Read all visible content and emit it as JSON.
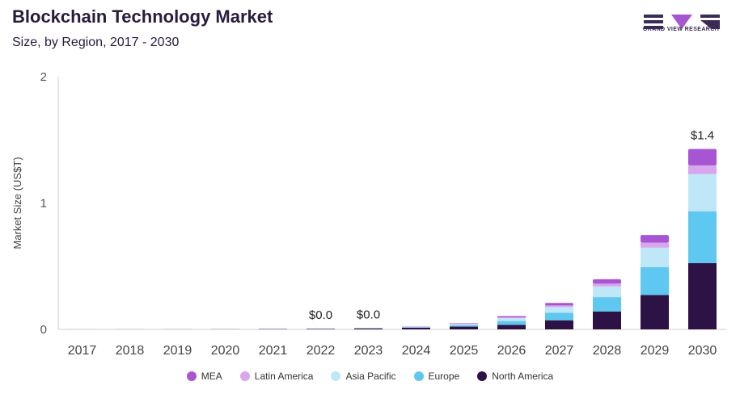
{
  "header": {
    "title": "Blockchain Technology Market",
    "subtitle": "Size, by Region, 2017 - 2030"
  },
  "logo": {
    "text": "GRAND VIEW RESEARCH",
    "color": "#3a2a55"
  },
  "chart_data": {
    "type": "bar",
    "stacked": true,
    "title": "Blockchain Technology Market",
    "subtitle": "Size, by Region, 2017 - 2030",
    "xlabel": "",
    "ylabel": "Market Size (US$T)",
    "ylim": [
      0,
      2
    ],
    "yticks": [
      0,
      1,
      2
    ],
    "grid": false,
    "legend_position": "bottom",
    "categories": [
      "2017",
      "2018",
      "2019",
      "2020",
      "2021",
      "2022",
      "2023",
      "2024",
      "2025",
      "2026",
      "2027",
      "2028",
      "2029",
      "2030"
    ],
    "series": [
      {
        "name": "North America",
        "color": "#2d1245",
        "values": [
          0.0002,
          0.0003,
          0.0006,
          0.0012,
          0.0025,
          0.004,
          0.008,
          0.013,
          0.022,
          0.036,
          0.072,
          0.142,
          0.272,
          0.525
        ]
      },
      {
        "name": "Europe",
        "color": "#5ec8f0",
        "values": [
          0.0002,
          0.0003,
          0.0005,
          0.0008,
          0.0015,
          0.001,
          0.001,
          0.004,
          0.011,
          0.03,
          0.06,
          0.113,
          0.22,
          0.41
        ]
      },
      {
        "name": "Asia Pacific",
        "color": "#bfe7f7",
        "values": [
          0.0001,
          0.0002,
          0.0003,
          0.0005,
          0.001,
          0.001,
          0.001,
          0.002,
          0.008,
          0.022,
          0.045,
          0.085,
          0.155,
          0.295
        ]
      },
      {
        "name": "Latin America",
        "color": "#d8a6ec",
        "values": [
          5e-05,
          0.0001,
          0.0001,
          0.0002,
          0.0004,
          0.0003,
          0.0004,
          0.001,
          0.003,
          0.007,
          0.012,
          0.022,
          0.04,
          0.068
        ]
      },
      {
        "name": "MEA",
        "color": "#a855d4",
        "values": [
          5e-05,
          0.0001,
          0.0001,
          0.0002,
          0.0004,
          0.0003,
          0.0004,
          0.002,
          0.004,
          0.01,
          0.02,
          0.035,
          0.06,
          0.13
        ]
      }
    ],
    "legend_order": [
      "MEA",
      "Latin America",
      "Asia Pacific",
      "Europe",
      "North America"
    ],
    "annotations": [
      {
        "category": "2022",
        "label": "$0.0"
      },
      {
        "category": "2023",
        "label": "$0.0"
      },
      {
        "category": "2030",
        "label": "$1.4"
      }
    ]
  }
}
